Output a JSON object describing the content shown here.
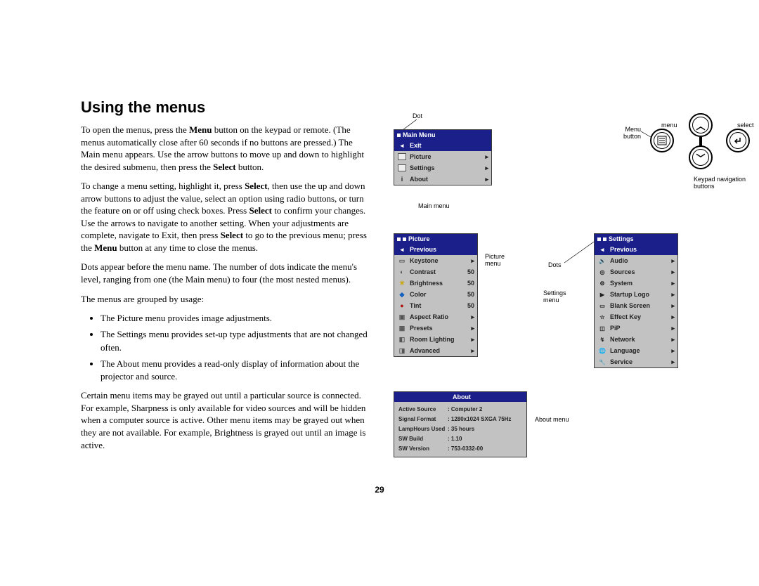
{
  "heading": "Using the menus",
  "para1_parts": [
    "To open the menus, press the ",
    "Menu",
    " button on the keypad or remote. (The menus automatically close after 60 seconds if no buttons are pressed.) The Main menu appears. Use the arrow buttons to move up and down to highlight the desired submenu, then press the ",
    "Select",
    " button."
  ],
  "para2_parts": [
    "To change a menu setting, highlight it, press ",
    "Select",
    ", then use the up and down arrow buttons to adjust the value, select an option using radio buttons, or turn the feature on or off using check boxes. Press ",
    "Select",
    " to confirm your changes. Use the arrows to navigate to another setting. When your adjustments are complete, navigate to Exit, then press ",
    "Select",
    " to go to the previous menu; press the ",
    "Menu",
    " button at any time to close the menus."
  ],
  "para3": "Dots appear before the menu name. The number of dots indicate the menu's level, ranging from one (the Main menu) to four (the most nested menus).",
  "para4": "The menus are grouped by usage:",
  "bullets": [
    "The Picture menu provides image adjustments.",
    "The Settings menu provides set-up type adjustments that are not changed often.",
    "The About menu provides a read-only display of information about the projector and source."
  ],
  "para5": "Certain menu items may be grayed out until a particular source is connected. For example, Sharpness is only available for video sources and will be hidden when a computer source is active. Other menu items may be grayed out when they are not available. For example, Brightness is grayed out until an image is active.",
  "page_number": "29",
  "labels": {
    "dot": "Dot",
    "main_menu": "Main menu",
    "menu": "menu",
    "select": "select",
    "menu_button": "Menu button",
    "keypad_nav": "Keypad navigation buttons",
    "picture_menu": "Picture menu",
    "dots": "Dots",
    "settings_menu": "Settings menu",
    "about_menu": "About menu"
  },
  "main_menu": {
    "title": "Main Menu",
    "exit": "Exit",
    "items": [
      {
        "label": "Picture"
      },
      {
        "label": "Settings"
      },
      {
        "label": "About"
      }
    ]
  },
  "picture_menu": {
    "title": "Picture",
    "prev": "Previous",
    "items": [
      {
        "label": "Keystone",
        "arrow": true
      },
      {
        "label": "Contrast",
        "val": "50"
      },
      {
        "label": "Brightness",
        "val": "50"
      },
      {
        "label": "Color",
        "val": "50"
      },
      {
        "label": "Tint",
        "val": "50"
      },
      {
        "label": "Aspect Ratio",
        "arrow": true
      },
      {
        "label": "Presets",
        "arrow": true
      },
      {
        "label": "Room Lighting",
        "arrow": true
      },
      {
        "label": "Advanced",
        "arrow": true
      }
    ]
  },
  "settings_menu": {
    "title": "Settings",
    "prev": "Previous",
    "items": [
      {
        "label": "Audio"
      },
      {
        "label": "Sources"
      },
      {
        "label": "System"
      },
      {
        "label": "Startup Logo"
      },
      {
        "label": "Blank Screen"
      },
      {
        "label": "Effect Key"
      },
      {
        "label": "PiP"
      },
      {
        "label": "Network"
      },
      {
        "label": "Language"
      },
      {
        "label": "Service"
      }
    ]
  },
  "about_menu": {
    "title": "About",
    "rows": [
      {
        "k": "Active Source",
        "v": ": Computer 2"
      },
      {
        "k": "Signal Format",
        "v": ": 1280x1024 SXGA    75Hz"
      },
      {
        "k": "LampHours Used",
        "v": ": 35 hours"
      },
      {
        "k": "SW Build",
        "v": ": 1.10"
      },
      {
        "k": "SW Version",
        "v": ": 753-0332-00"
      }
    ]
  },
  "colors": {
    "menu_blue": "#1a1f8a",
    "menu_gray": "#c2c2c2"
  }
}
